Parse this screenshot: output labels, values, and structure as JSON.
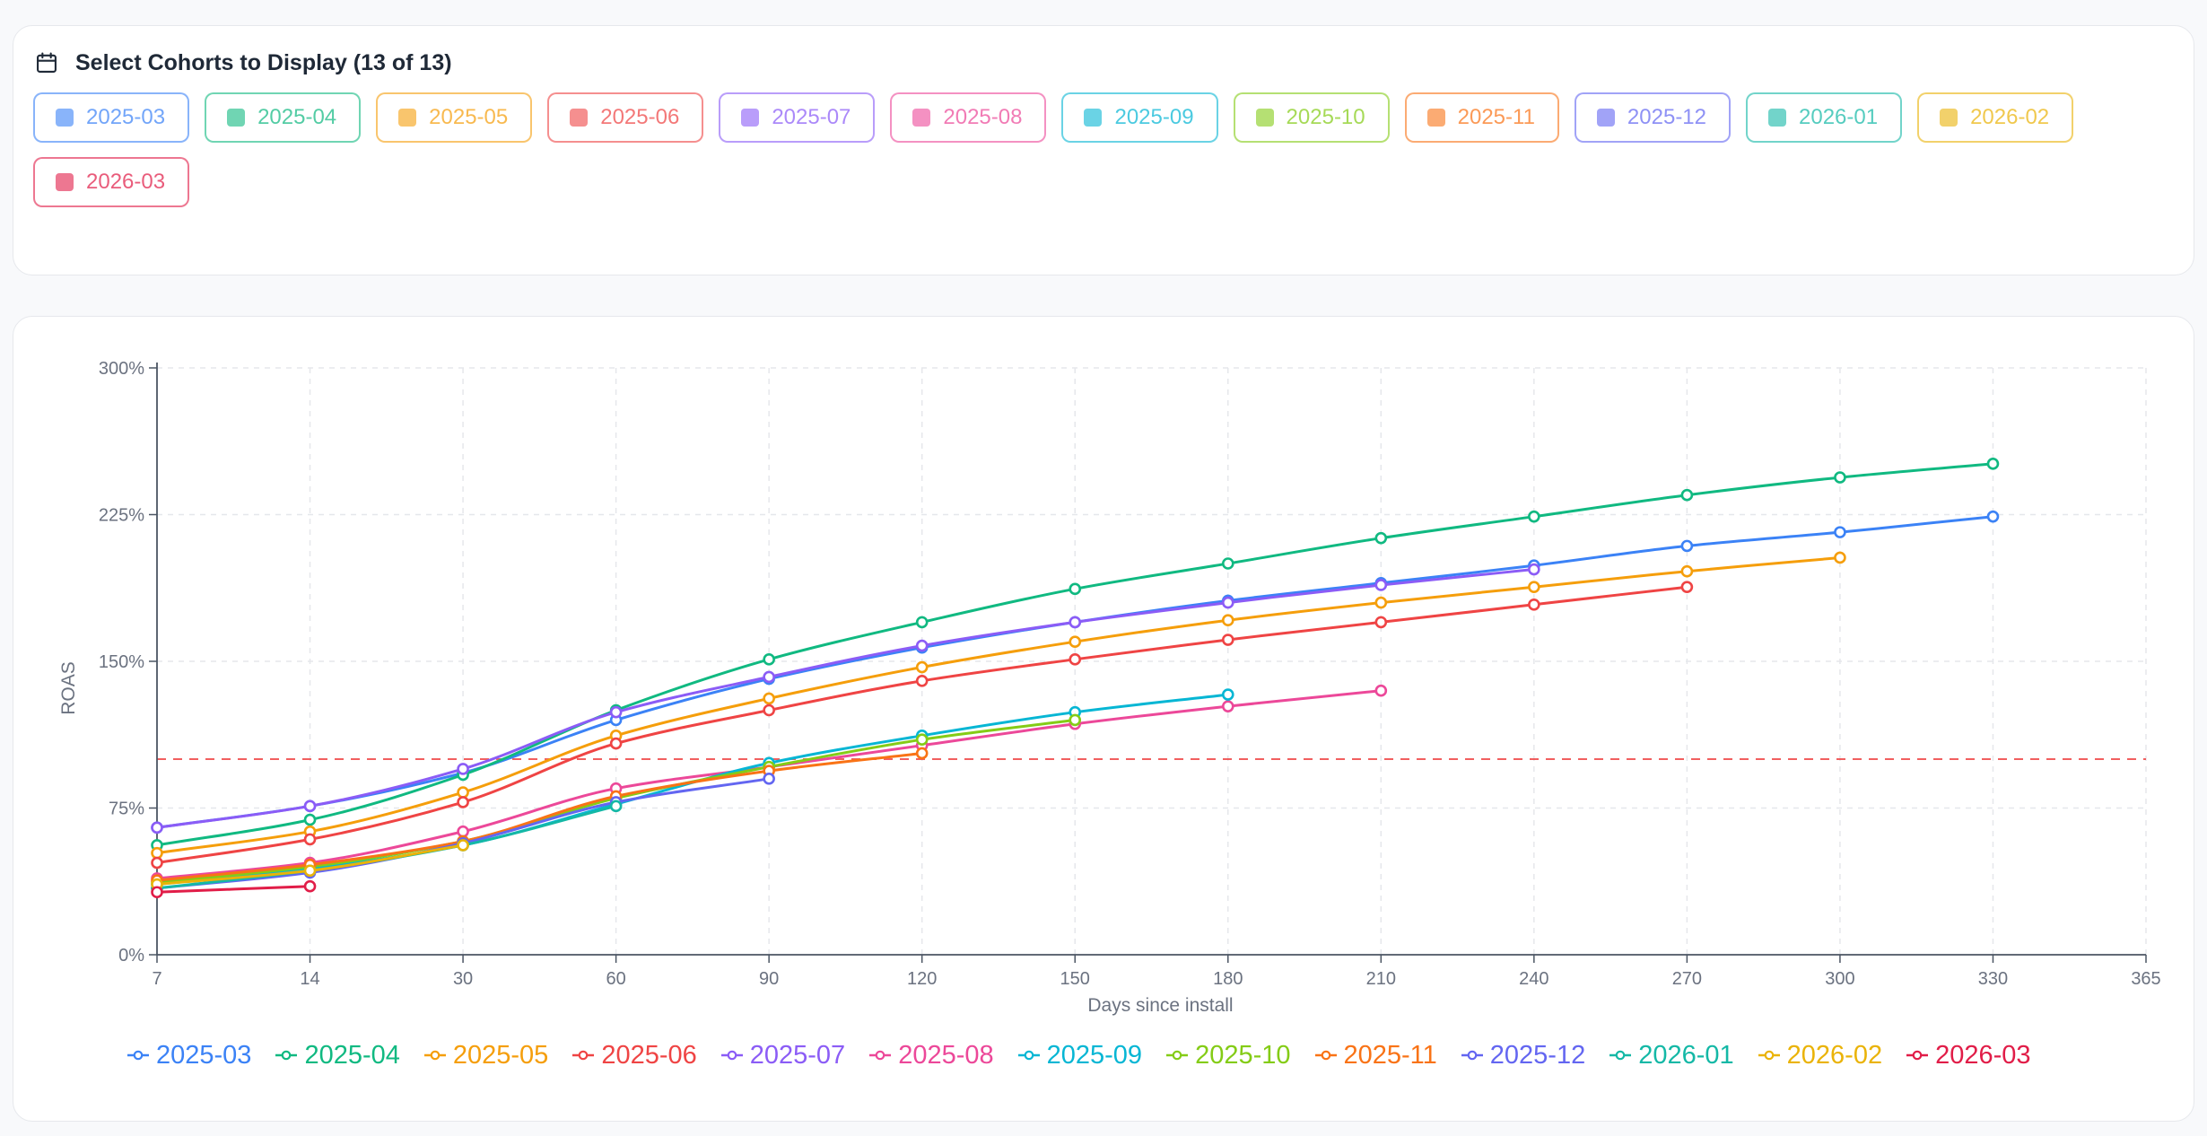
{
  "selector": {
    "title": "Select Cohorts to Display (13 of 13)",
    "icon": "calendar-icon"
  },
  "chart_data": {
    "type": "line",
    "title": "",
    "xlabel": "Days since install",
    "ylabel": "ROAS",
    "x_ticks": [
      7,
      14,
      30,
      60,
      90,
      120,
      150,
      180,
      210,
      240,
      270,
      300,
      330,
      365
    ],
    "y_ticks": [
      "0%",
      "75%",
      "150%",
      "225%",
      "300%"
    ],
    "ylim": [
      0,
      300
    ],
    "grid": true,
    "reference_line": {
      "y": 100,
      "color": "#ef4444",
      "style": "dashed"
    },
    "legend_position": "bottom",
    "series": [
      {
        "name": "2025-03",
        "color": "#3b82f6",
        "x": [
          7,
          14,
          30,
          60,
          90,
          120,
          150,
          180,
          210,
          240,
          270,
          300,
          330
        ],
        "y": [
          65,
          76,
          93,
          120,
          141,
          157,
          170,
          181,
          190,
          199,
          209,
          216,
          224
        ]
      },
      {
        "name": "2025-04",
        "color": "#10b981",
        "x": [
          7,
          14,
          30,
          60,
          90,
          120,
          150,
          180,
          210,
          240,
          270,
          300,
          330
        ],
        "y": [
          56,
          69,
          92,
          125,
          151,
          170,
          187,
          200,
          213,
          224,
          235,
          244,
          251
        ]
      },
      {
        "name": "2025-05",
        "color": "#f59e0b",
        "x": [
          7,
          14,
          30,
          60,
          90,
          120,
          150,
          180,
          210,
          240,
          270,
          300
        ],
        "y": [
          52,
          63,
          83,
          112,
          131,
          147,
          160,
          171,
          180,
          188,
          196,
          203
        ]
      },
      {
        "name": "2025-06",
        "color": "#ef4444",
        "x": [
          7,
          14,
          30,
          60,
          90,
          120,
          150,
          180,
          210,
          240,
          270
        ],
        "y": [
          47,
          59,
          78,
          108,
          125,
          140,
          151,
          161,
          170,
          179,
          188
        ]
      },
      {
        "name": "2025-07",
        "color": "#8b5cf6",
        "x": [
          7,
          14,
          30,
          60,
          90,
          120,
          150,
          180,
          210,
          240
        ],
        "y": [
          65,
          76,
          95,
          124,
          142,
          158,
          170,
          180,
          189,
          197
        ]
      },
      {
        "name": "2025-08",
        "color": "#ec4899",
        "x": [
          7,
          14,
          30,
          60,
          90,
          120,
          150,
          180,
          210
        ],
        "y": [
          39,
          47,
          63,
          85,
          96,
          107,
          118,
          127,
          135
        ]
      },
      {
        "name": "2025-09",
        "color": "#06b6d4",
        "x": [
          7,
          14,
          30,
          60,
          90,
          120,
          150,
          180
        ],
        "y": [
          36,
          44,
          56,
          77,
          98,
          112,
          124,
          133
        ]
      },
      {
        "name": "2025-10",
        "color": "#84cc16",
        "x": [
          7,
          14,
          30,
          60,
          90,
          120,
          150
        ],
        "y": [
          37,
          45,
          58,
          80,
          96,
          110,
          120
        ]
      },
      {
        "name": "2025-11",
        "color": "#f97316",
        "x": [
          7,
          14,
          30,
          60,
          90,
          120
        ],
        "y": [
          38,
          46,
          58,
          81,
          94,
          103
        ]
      },
      {
        "name": "2025-12",
        "color": "#6366f1",
        "x": [
          7,
          14,
          30,
          60,
          90
        ],
        "y": [
          34,
          42,
          57,
          78,
          90
        ]
      },
      {
        "name": "2026-01",
        "color": "#14b8a6",
        "x": [
          7,
          14,
          30,
          60
        ],
        "y": [
          34,
          43,
          56,
          76
        ]
      },
      {
        "name": "2026-02",
        "color": "#eab308",
        "x": [
          7,
          14,
          30
        ],
        "y": [
          36,
          43,
          56
        ]
      },
      {
        "name": "2026-03",
        "color": "#e11d48",
        "x": [
          7,
          14
        ],
        "y": [
          32,
          35
        ]
      }
    ]
  }
}
